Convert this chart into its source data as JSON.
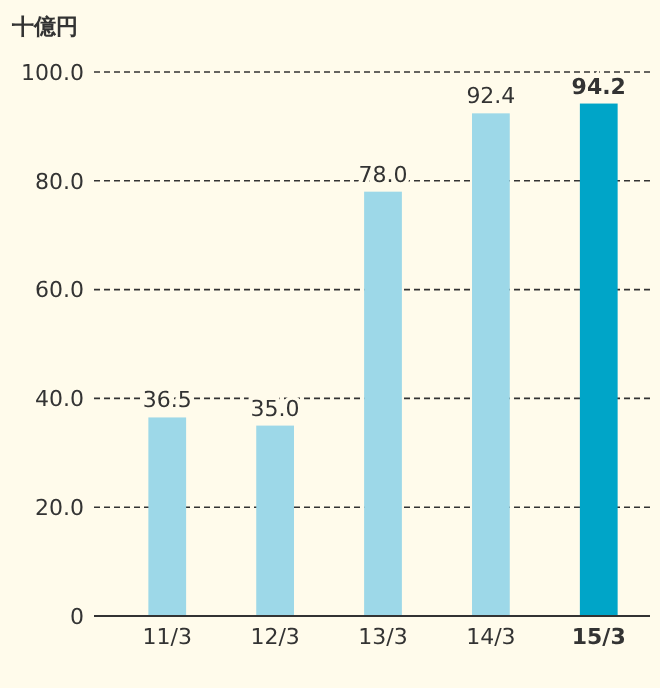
{
  "chart_data": {
    "type": "bar",
    "ylabel": "十億円",
    "categories": [
      "11/3",
      "12/3",
      "13/3",
      "14/3",
      "15/3"
    ],
    "values": [
      36.5,
      35.0,
      78.0,
      92.4,
      94.2
    ],
    "colors": [
      "#9dd8e8",
      "#9dd8e8",
      "#9dd8e8",
      "#9dd8e8",
      "#00a5c8"
    ],
    "value_labels": [
      "36.5",
      "35.0",
      "78.0",
      "92.4",
      "94.2"
    ],
    "ylim": [
      0,
      100
    ],
    "yticks": [
      {
        "value": 0,
        "label": "0"
      },
      {
        "value": 20,
        "label": "20.0"
      },
      {
        "value": 40,
        "label": "40.0"
      },
      {
        "value": 60,
        "label": "60.0"
      },
      {
        "value": 80,
        "label": "80.0"
      },
      {
        "value": 100,
        "label": "100.0"
      }
    ],
    "grid": "y"
  }
}
